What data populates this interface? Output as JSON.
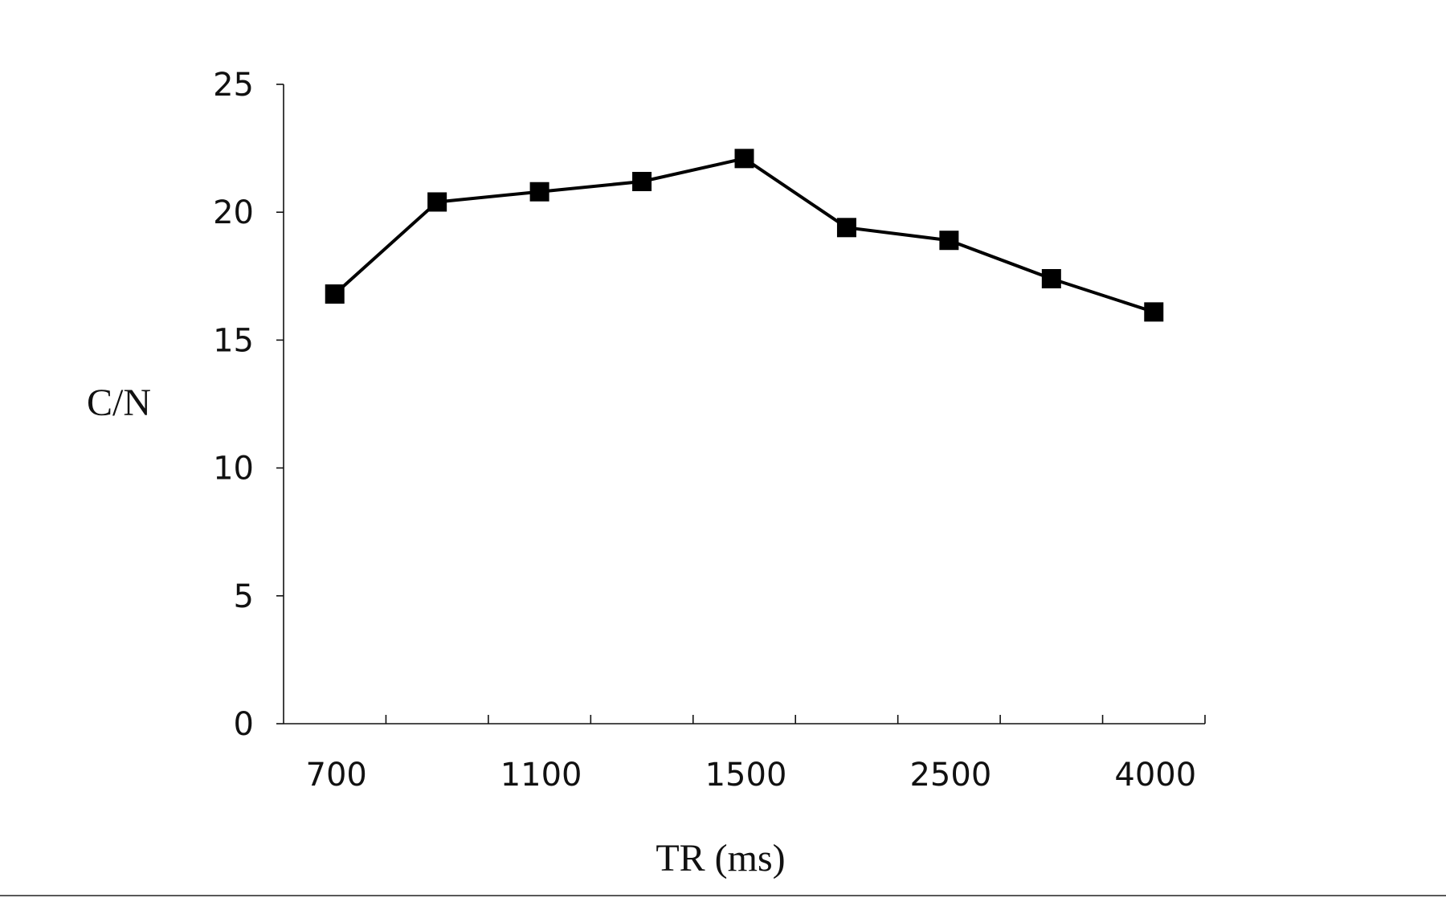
{
  "chart_data": {
    "type": "line",
    "title": "",
    "xlabel": "TR (ms)",
    "ylabel": "C/N",
    "x_tick_labels": [
      "700",
      "1100",
      "1500",
      "2500",
      "4000"
    ],
    "categories": [
      "700",
      "",
      "1100",
      "",
      "1500",
      "",
      "2500",
      "",
      "4000"
    ],
    "y_ticks": [
      0,
      5,
      10,
      15,
      20,
      25
    ],
    "ylim": [
      0,
      25
    ],
    "grid": false,
    "legend": "none",
    "series": [
      {
        "color": "#000000",
        "marker": "square",
        "values": [
          16.8,
          20.4,
          20.8,
          21.2,
          22.1,
          19.4,
          18.9,
          17.4,
          16.1
        ]
      }
    ]
  }
}
